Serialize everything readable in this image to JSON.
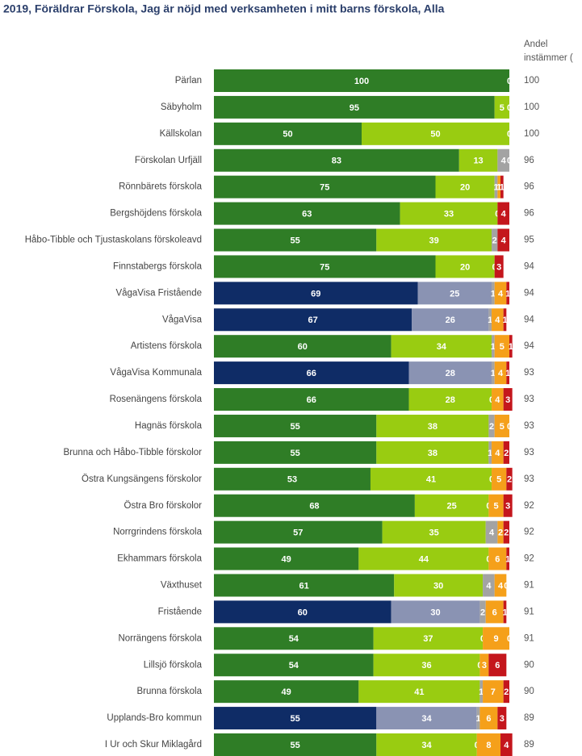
{
  "chart_data": {
    "type": "stacked-barh",
    "title": "2019, Föräldrar Förskola, Jag är nöjd med verksamheten i mitt barns förskola, Alla",
    "share_header": [
      "Andel",
      "instämmer ("
    ],
    "xlim": [
      0,
      100
    ],
    "categories": [
      "Pärlan",
      "Säbyholm",
      "Källskolan",
      "Förskolan Urfjäll",
      "Rönnbärets förskola",
      "Bergshöjdens förskola",
      "Håbo-Tibble och Tjustaskolans förskoleavd",
      "Finnstabergs förskola",
      "VågaVisa Fristående",
      "VågaVisa",
      "Artistens förskola",
      "VågaVisa Kommunala",
      "Rosenängens förskola",
      "Hagnäs förskola",
      "Brunna och Håbo-Tibble förskolor",
      "Östra Kungsängens förskolor",
      "Östra Bro förskolor",
      "Norrgrindens förskola",
      "Ekhammars förskola",
      "Växthuset",
      "Fristående",
      "Norrängens förskola",
      "Lillsjö förskola",
      "Brunna förskola",
      "Upplands-Bro kommun",
      "I Ur och Skur Miklagård"
    ],
    "series": [
      {
        "color": "#2f7d26",
        "colors": [
          "#2f7d26",
          "#2f7d26",
          "#2f7d26",
          "#2f7d26",
          "#2f7d26",
          "#2f7d26",
          "#2f7d26",
          "#2f7d26",
          "#0f2c66",
          "#0f2c66",
          "#2f7d26",
          "#0f2c66",
          "#2f7d26",
          "#2f7d26",
          "#2f7d26",
          "#2f7d26",
          "#2f7d26",
          "#2f7d26",
          "#2f7d26",
          "#2f7d26",
          "#0f2c66",
          "#2f7d26",
          "#2f7d26",
          "#2f7d26",
          "#0f2c66",
          "#2f7d26"
        ],
        "values": [
          100,
          95,
          50,
          83,
          75,
          63,
          55,
          75,
          69,
          67,
          60,
          66,
          66,
          55,
          55,
          53,
          68,
          57,
          49,
          61,
          60,
          54,
          54,
          49,
          55,
          55
        ]
      },
      {
        "color": "#99cc11",
        "colors": [
          "#99cc11",
          "#99cc11",
          "#99cc11",
          "#99cc11",
          "#99cc11",
          "#99cc11",
          "#99cc11",
          "#99cc11",
          "#8a93b3",
          "#8a93b3",
          "#99cc11",
          "#8a93b3",
          "#99cc11",
          "#99cc11",
          "#99cc11",
          "#99cc11",
          "#99cc11",
          "#99cc11",
          "#99cc11",
          "#99cc11",
          "#8a93b3",
          "#99cc11",
          "#99cc11",
          "#99cc11",
          "#8a93b3",
          "#99cc11"
        ],
        "values": [
          0,
          5,
          50,
          13,
          20,
          33,
          39,
          20,
          25,
          26,
          34,
          28,
          28,
          38,
          38,
          41,
          25,
          35,
          44,
          30,
          30,
          37,
          36,
          41,
          34,
          34
        ]
      },
      {
        "color": "#a3a3a3",
        "values": [
          null,
          0,
          0,
          4,
          1,
          null,
          2,
          0,
          1,
          1,
          1,
          1,
          0,
          2,
          1,
          0,
          0,
          4,
          0,
          4,
          2,
          0,
          0,
          1,
          1,
          0
        ]
      },
      {
        "color": "#f5a01a",
        "values": [
          null,
          null,
          null,
          0,
          1,
          0,
          null,
          null,
          4,
          4,
          5,
          4,
          4,
          5,
          4,
          5,
          5,
          2,
          6,
          4,
          6,
          9,
          3,
          7,
          6,
          8
        ]
      },
      {
        "color": "#c4161c",
        "values": [
          null,
          null,
          null,
          null,
          1,
          4,
          4,
          3,
          1,
          1,
          1,
          1,
          3,
          0,
          2,
          2,
          3,
          2,
          1,
          0,
          1,
          0,
          6,
          2,
          3,
          4
        ]
      }
    ],
    "share": [
      100,
      100,
      100,
      96,
      96,
      96,
      95,
      94,
      94,
      94,
      94,
      93,
      93,
      93,
      93,
      93,
      92,
      92,
      92,
      91,
      91,
      91,
      90,
      90,
      89,
      89
    ]
  }
}
